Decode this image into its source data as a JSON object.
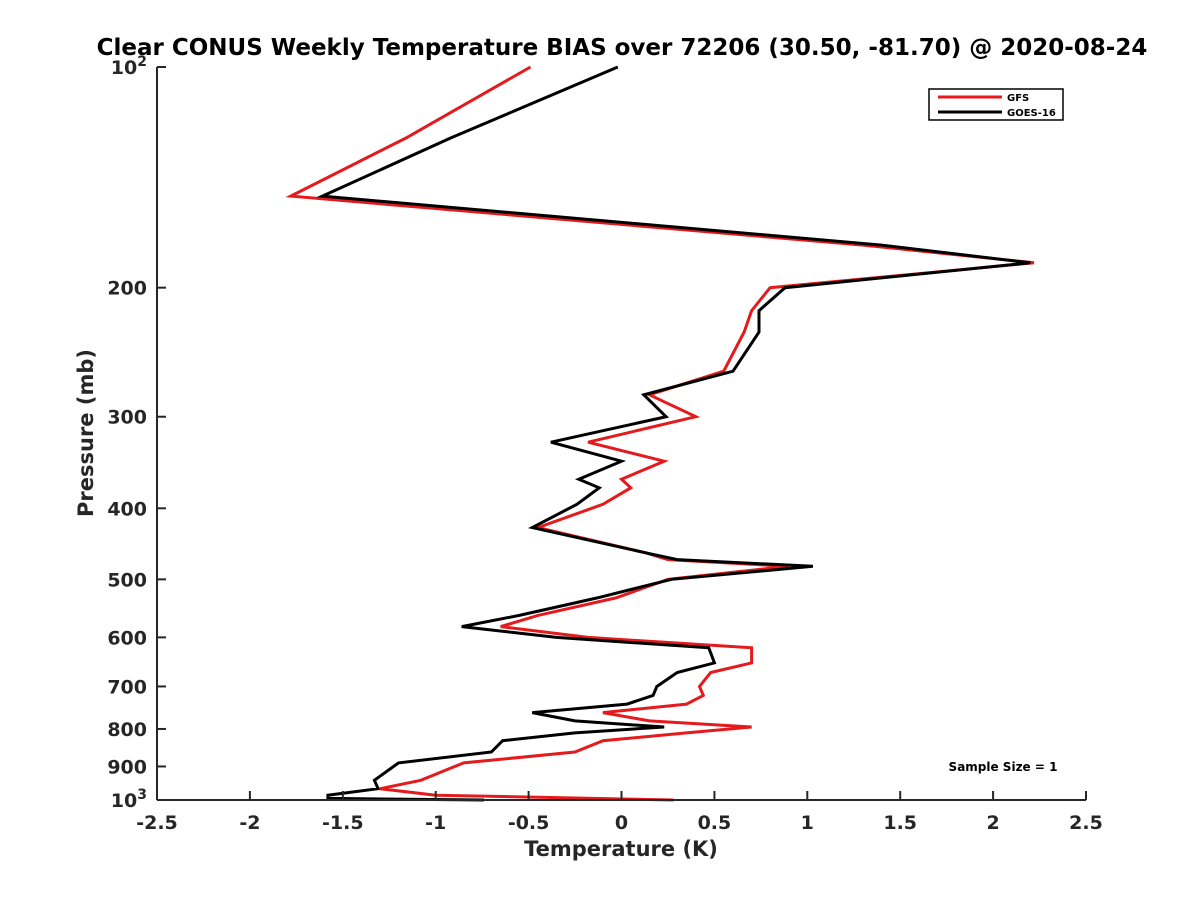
{
  "chart_data": {
    "type": "line",
    "title": "Clear CONUS Weekly Temperature BIAS over 72206 (30.50, -81.70) @ 2020-08-24",
    "xlabel": "Temperature (K)",
    "ylabel": "Pressure (mb)",
    "xlim": [
      -2.5,
      2.5
    ],
    "ylim": [
      100,
      1000
    ],
    "y_scale": "log",
    "y_reversed": true,
    "x_ticks": [
      "-2.5",
      "-2",
      "-1.5",
      "-1",
      "-0.5",
      "0",
      "0.5",
      "1",
      "1.5",
      "2",
      "2.5"
    ],
    "y_ticks": [
      {
        "value": 100,
        "base": "10",
        "exp": "2"
      },
      {
        "value": 200,
        "label": "200"
      },
      {
        "value": 300,
        "label": "300"
      },
      {
        "value": 400,
        "label": "400"
      },
      {
        "value": 500,
        "label": "500"
      },
      {
        "value": 600,
        "label": "600"
      },
      {
        "value": 700,
        "label": "700"
      },
      {
        "value": 800,
        "label": "800"
      },
      {
        "value": 900,
        "label": "900"
      },
      {
        "value": 1000,
        "base": "10",
        "exp": "3"
      }
    ],
    "legend_position": "top-right",
    "grid": false,
    "annotation": "Sample Size = 1",
    "series": [
      {
        "name": "GFS",
        "color": "#e41a1c",
        "points": [
          [
            -0.49,
            100
          ],
          [
            -1.16,
            125
          ],
          [
            -1.78,
            150
          ],
          [
            1.3,
            175
          ],
          [
            2.22,
            185
          ],
          [
            0.8,
            200
          ],
          [
            0.7,
            215
          ],
          [
            0.66,
            230
          ],
          [
            0.55,
            260
          ],
          [
            0.15,
            280
          ],
          [
            0.4,
            300
          ],
          [
            -0.18,
            325
          ],
          [
            0.23,
            345
          ],
          [
            0.0,
            365
          ],
          [
            0.05,
            375
          ],
          [
            -0.1,
            395
          ],
          [
            -0.45,
            425
          ],
          [
            0.13,
            460
          ],
          [
            0.25,
            470
          ],
          [
            0.9,
            480
          ],
          [
            0.25,
            500
          ],
          [
            -0.03,
            530
          ],
          [
            -0.45,
            560
          ],
          [
            -0.65,
            580
          ],
          [
            -0.18,
            600
          ],
          [
            0.7,
            620
          ],
          [
            0.7,
            650
          ],
          [
            0.48,
            670
          ],
          [
            0.42,
            700
          ],
          [
            0.44,
            720
          ],
          [
            0.35,
            740
          ],
          [
            -0.1,
            760
          ],
          [
            0.15,
            780
          ],
          [
            0.7,
            795
          ],
          [
            0.35,
            810
          ],
          [
            -0.1,
            830
          ],
          [
            -0.25,
            860
          ],
          [
            -0.85,
            890
          ],
          [
            -1.08,
            940
          ],
          [
            -1.3,
            965
          ],
          [
            -1.0,
            985
          ],
          [
            0.28,
            1000
          ]
        ]
      },
      {
        "name": "GOES-16",
        "color": "#000000",
        "points": [
          [
            -0.02,
            100
          ],
          [
            -0.92,
            125
          ],
          [
            -1.61,
            150
          ],
          [
            1.4,
            175
          ],
          [
            2.2,
            185
          ],
          [
            0.88,
            200
          ],
          [
            0.74,
            215
          ],
          [
            0.74,
            230
          ],
          [
            0.6,
            260
          ],
          [
            0.12,
            280
          ],
          [
            0.24,
            300
          ],
          [
            -0.38,
            325
          ],
          [
            0.0,
            345
          ],
          [
            -0.23,
            365
          ],
          [
            -0.12,
            375
          ],
          [
            -0.24,
            395
          ],
          [
            -0.48,
            425
          ],
          [
            0.13,
            460
          ],
          [
            0.3,
            470
          ],
          [
            1.03,
            480
          ],
          [
            0.27,
            500
          ],
          [
            -0.13,
            530
          ],
          [
            -0.55,
            560
          ],
          [
            -0.86,
            580
          ],
          [
            -0.35,
            600
          ],
          [
            0.47,
            620
          ],
          [
            0.5,
            650
          ],
          [
            0.3,
            670
          ],
          [
            0.19,
            700
          ],
          [
            0.17,
            720
          ],
          [
            0.03,
            740
          ],
          [
            -0.48,
            760
          ],
          [
            -0.25,
            780
          ],
          [
            0.23,
            795
          ],
          [
            -0.25,
            810
          ],
          [
            -0.64,
            830
          ],
          [
            -0.7,
            860
          ],
          [
            -1.2,
            890
          ],
          [
            -1.33,
            940
          ],
          [
            -1.31,
            965
          ],
          [
            -1.58,
            985
          ],
          [
            -1.58,
            995
          ],
          [
            -0.74,
            1000
          ]
        ]
      }
    ]
  }
}
